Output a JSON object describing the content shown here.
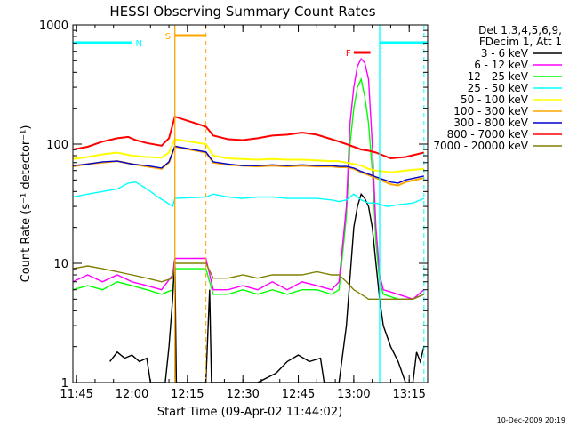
{
  "chart_data": {
    "type": "line",
    "title": "HESSI Observing Summary Count Rates",
    "xlabel": "Start Time (09-Apr-02 11:44:02)",
    "ylabel": "Count Rate (s⁻¹ detector⁻¹)",
    "yscale": "log",
    "ylim": [
      1,
      1000
    ],
    "xlim_minutes": [
      0,
      96
    ],
    "x_ticks": [
      {
        "t": 1,
        "label": "11:45"
      },
      {
        "t": 16,
        "label": "12:00"
      },
      {
        "t": 31,
        "label": "12:15"
      },
      {
        "t": 46,
        "label": "12:30"
      },
      {
        "t": 61,
        "label": "12:45"
      },
      {
        "t": 76,
        "label": "13:00"
      },
      {
        "t": 91,
        "label": "13:15"
      }
    ],
    "y_ticks": [
      {
        "v": 1,
        "label": "1"
      },
      {
        "v": 10,
        "label": "10"
      },
      {
        "v": 100,
        "label": "100"
      },
      {
        "v": 1000,
        "label": "1000"
      }
    ],
    "legend_header": [
      "Det 1,3,4,5,6,9,",
      "FDecim 1, Att 1"
    ],
    "series": [
      {
        "name": "3 - 6 keV",
        "color": "#000000",
        "points": [
          [
            10,
            1.5
          ],
          [
            12,
            1.8
          ],
          [
            14,
            1.6
          ],
          [
            16,
            1.7
          ],
          [
            18,
            1.5
          ],
          [
            20,
            1.6
          ],
          [
            21,
            1
          ],
          [
            23,
            1
          ],
          [
            25,
            1
          ],
          [
            26,
            2
          ],
          [
            27,
            5
          ],
          [
            27.6,
            11
          ],
          [
            28,
            1
          ],
          [
            36,
            1
          ],
          [
            37,
            6
          ],
          [
            37.5,
            1
          ],
          [
            44,
            1
          ],
          [
            50,
            1
          ],
          [
            55,
            1.2
          ],
          [
            58,
            1.5
          ],
          [
            61,
            1.7
          ],
          [
            64,
            1.5
          ],
          [
            67,
            1.6
          ],
          [
            68,
            1
          ],
          [
            72,
            1
          ],
          [
            74,
            3
          ],
          [
            76,
            20
          ],
          [
            77,
            30
          ],
          [
            78,
            38
          ],
          [
            79,
            35
          ],
          [
            80,
            30
          ],
          [
            81,
            20
          ],
          [
            82,
            10
          ],
          [
            83,
            5
          ],
          [
            84,
            3
          ],
          [
            86,
            2
          ],
          [
            88,
            1.5
          ],
          [
            90,
            1
          ],
          [
            92,
            1
          ],
          [
            93,
            1.8
          ],
          [
            94,
            1.5
          ],
          [
            95,
            2
          ]
        ]
      },
      {
        "name": "6 - 12 keV",
        "color": "#ff00ff",
        "points": [
          [
            0,
            7
          ],
          [
            4,
            8
          ],
          [
            8,
            7
          ],
          [
            12,
            8
          ],
          [
            16,
            7
          ],
          [
            20,
            6.5
          ],
          [
            24,
            6
          ],
          [
            27,
            8
          ],
          [
            27.6,
            11
          ],
          [
            36,
            11
          ],
          [
            38,
            6
          ],
          [
            42,
            6
          ],
          [
            46,
            6.5
          ],
          [
            50,
            6
          ],
          [
            54,
            7
          ],
          [
            58,
            6
          ],
          [
            62,
            7
          ],
          [
            66,
            6.5
          ],
          [
            70,
            6
          ],
          [
            72,
            7
          ],
          [
            74,
            30
          ],
          [
            75,
            150
          ],
          [
            76,
            300
          ],
          [
            77,
            450
          ],
          [
            78,
            520
          ],
          [
            79,
            480
          ],
          [
            80,
            350
          ],
          [
            81,
            100
          ],
          [
            82,
            20
          ],
          [
            83,
            8
          ],
          [
            84,
            6
          ],
          [
            88,
            5.5
          ],
          [
            92,
            5
          ],
          [
            95,
            6
          ]
        ]
      },
      {
        "name": "12 - 25 keV",
        "color": "#00ff00",
        "points": [
          [
            0,
            6
          ],
          [
            4,
            6.5
          ],
          [
            8,
            6
          ],
          [
            12,
            7
          ],
          [
            16,
            6.5
          ],
          [
            20,
            6
          ],
          [
            24,
            5.5
          ],
          [
            27,
            6
          ],
          [
            27.6,
            9
          ],
          [
            36,
            9
          ],
          [
            38,
            5.5
          ],
          [
            42,
            5.5
          ],
          [
            46,
            6
          ],
          [
            50,
            5.5
          ],
          [
            54,
            6
          ],
          [
            58,
            5.5
          ],
          [
            62,
            6
          ],
          [
            66,
            6
          ],
          [
            70,
            5.5
          ],
          [
            72,
            6
          ],
          [
            74,
            25
          ],
          [
            75,
            100
          ],
          [
            76,
            200
          ],
          [
            77,
            300
          ],
          [
            78,
            350
          ],
          [
            79,
            250
          ],
          [
            80,
            150
          ],
          [
            81,
            60
          ],
          [
            82,
            15
          ],
          [
            83,
            7
          ],
          [
            84,
            5.5
          ],
          [
            88,
            5
          ],
          [
            92,
            5
          ],
          [
            95,
            5.5
          ]
        ]
      },
      {
        "name": "25 - 50 keV",
        "color": "#00ffff",
        "points": [
          [
            0,
            36
          ],
          [
            4,
            38
          ],
          [
            8,
            40
          ],
          [
            12,
            42
          ],
          [
            15,
            47
          ],
          [
            17,
            48
          ],
          [
            19,
            44
          ],
          [
            21,
            40
          ],
          [
            23,
            36
          ],
          [
            25,
            33
          ],
          [
            27,
            30
          ],
          [
            27.6,
            35
          ],
          [
            36,
            36
          ],
          [
            38,
            38
          ],
          [
            42,
            36
          ],
          [
            46,
            35
          ],
          [
            50,
            36
          ],
          [
            54,
            36
          ],
          [
            58,
            35
          ],
          [
            62,
            35
          ],
          [
            66,
            35
          ],
          [
            70,
            34
          ],
          [
            72,
            33
          ],
          [
            74,
            34
          ],
          [
            76,
            38
          ],
          [
            78,
            34
          ],
          [
            80,
            32
          ],
          [
            82,
            32
          ],
          [
            85,
            30
          ],
          [
            88,
            31
          ],
          [
            92,
            32
          ],
          [
            95,
            35
          ]
        ]
      },
      {
        "name": "50 - 100 keV",
        "color": "#ffff00",
        "points": [
          [
            0,
            75
          ],
          [
            4,
            78
          ],
          [
            8,
            82
          ],
          [
            12,
            85
          ],
          [
            16,
            80
          ],
          [
            20,
            78
          ],
          [
            24,
            77
          ],
          [
            26,
            85
          ],
          [
            27.6,
            110
          ],
          [
            36,
            100
          ],
          [
            38,
            80
          ],
          [
            42,
            76
          ],
          [
            46,
            75
          ],
          [
            50,
            74
          ],
          [
            54,
            75
          ],
          [
            58,
            74
          ],
          [
            62,
            74
          ],
          [
            66,
            73
          ],
          [
            70,
            72
          ],
          [
            72,
            72
          ],
          [
            74,
            70
          ],
          [
            76,
            68
          ],
          [
            78,
            66
          ],
          [
            80,
            62
          ],
          [
            82,
            60
          ],
          [
            86,
            58
          ],
          [
            90,
            60
          ],
          [
            95,
            62
          ]
        ]
      },
      {
        "name": "100 - 300 keV",
        "color": "#ffa500",
        "points": [
          [
            0,
            65
          ],
          [
            4,
            68
          ],
          [
            8,
            70
          ],
          [
            12,
            72
          ],
          [
            16,
            68
          ],
          [
            20,
            65
          ],
          [
            24,
            62
          ],
          [
            26,
            70
          ],
          [
            27.6,
            95
          ],
          [
            36,
            85
          ],
          [
            38,
            70
          ],
          [
            42,
            67
          ],
          [
            46,
            66
          ],
          [
            50,
            65
          ],
          [
            54,
            66
          ],
          [
            58,
            65
          ],
          [
            62,
            66
          ],
          [
            66,
            65
          ],
          [
            70,
            65
          ],
          [
            72,
            64
          ],
          [
            74,
            64
          ],
          [
            76,
            62
          ],
          [
            78,
            58
          ],
          [
            80,
            55
          ],
          [
            82,
            52
          ],
          [
            86,
            46
          ],
          [
            88,
            45
          ],
          [
            90,
            48
          ],
          [
            95,
            52
          ]
        ]
      },
      {
        "name": "300 - 800 keV",
        "color": "#0000cc",
        "points": [
          [
            0,
            66
          ],
          [
            4,
            68
          ],
          [
            8,
            71
          ],
          [
            12,
            72
          ],
          [
            16,
            68
          ],
          [
            20,
            66
          ],
          [
            24,
            63
          ],
          [
            26,
            71
          ],
          [
            27.6,
            96
          ],
          [
            36,
            86
          ],
          [
            38,
            71
          ],
          [
            42,
            68
          ],
          [
            46,
            66
          ],
          [
            50,
            66
          ],
          [
            54,
            67
          ],
          [
            58,
            66
          ],
          [
            62,
            67
          ],
          [
            66,
            66
          ],
          [
            70,
            66
          ],
          [
            72,
            65
          ],
          [
            74,
            65
          ],
          [
            76,
            63
          ],
          [
            78,
            59
          ],
          [
            80,
            56
          ],
          [
            82,
            53
          ],
          [
            86,
            48
          ],
          [
            88,
            47
          ],
          [
            90,
            50
          ],
          [
            95,
            54
          ]
        ]
      },
      {
        "name": "800 - 7000 keV",
        "color": "#ff0000",
        "points": [
          [
            0,
            90
          ],
          [
            4,
            95
          ],
          [
            8,
            105
          ],
          [
            12,
            112
          ],
          [
            15,
            115
          ],
          [
            17,
            108
          ],
          [
            20,
            102
          ],
          [
            24,
            97
          ],
          [
            26,
            112
          ],
          [
            27.6,
            170
          ],
          [
            36,
            140
          ],
          [
            38,
            118
          ],
          [
            42,
            110
          ],
          [
            46,
            108
          ],
          [
            50,
            112
          ],
          [
            54,
            118
          ],
          [
            58,
            120
          ],
          [
            62,
            125
          ],
          [
            66,
            120
          ],
          [
            70,
            110
          ],
          [
            72,
            105
          ],
          [
            74,
            100
          ],
          [
            76,
            95
          ],
          [
            78,
            90
          ],
          [
            80,
            88
          ],
          [
            82,
            85
          ],
          [
            86,
            76
          ],
          [
            90,
            78
          ],
          [
            95,
            85
          ]
        ]
      },
      {
        "name": "7000 - 20000 keV",
        "color": "#808000",
        "points": [
          [
            0,
            9
          ],
          [
            4,
            9.5
          ],
          [
            8,
            9
          ],
          [
            12,
            8.5
          ],
          [
            16,
            8
          ],
          [
            20,
            7.5
          ],
          [
            24,
            7
          ],
          [
            27,
            7.5
          ],
          [
            27.6,
            10
          ],
          [
            36,
            10
          ],
          [
            38,
            7.5
          ],
          [
            42,
            7.5
          ],
          [
            46,
            8
          ],
          [
            50,
            7.5
          ],
          [
            54,
            8
          ],
          [
            58,
            8
          ],
          [
            62,
            8
          ],
          [
            66,
            8.5
          ],
          [
            70,
            8
          ],
          [
            72,
            8
          ],
          [
            74,
            7
          ],
          [
            76,
            6
          ],
          [
            78,
            5.5
          ],
          [
            80,
            5
          ],
          [
            84,
            5
          ],
          [
            88,
            5
          ],
          [
            92,
            5
          ],
          [
            95,
            5.5
          ]
        ]
      }
    ],
    "annotations": [
      {
        "label": "N",
        "color": "#00ffff",
        "t_start": 0,
        "t_end": 16,
        "resume_t": 83,
        "dashed_lines": [
          16,
          95
        ]
      },
      {
        "label": "S",
        "color": "#ffa500",
        "t_start": 27.6,
        "t_end": 36,
        "dashed_lines": [
          36
        ]
      },
      {
        "label": "F",
        "color": "#ff0000",
        "t_start": 76,
        "t_end": 80.5
      }
    ],
    "attenuator_lines": [
      {
        "t": 27.6,
        "color": "#ffa500"
      },
      {
        "t": 83,
        "color": "#00ffff"
      }
    ],
    "footer_date": "10-Dec-2009 20:19"
  }
}
